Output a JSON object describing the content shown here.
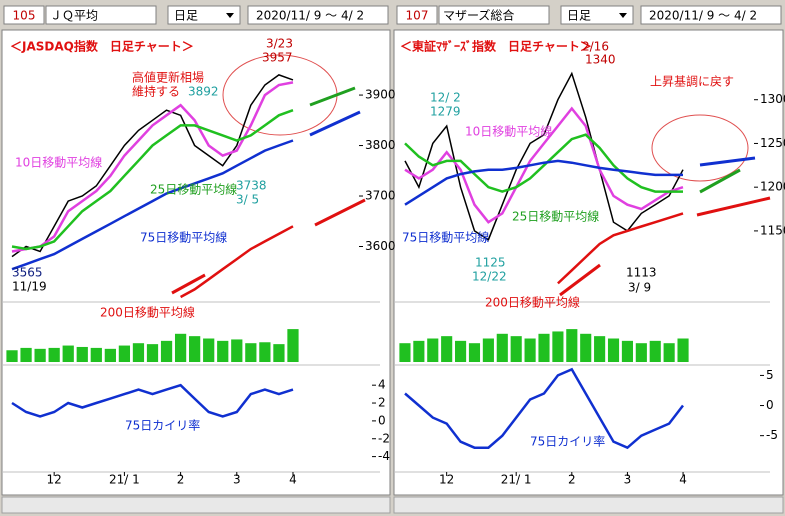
{
  "headers": [
    {
      "code": "105",
      "name": "ＪＱ平均",
      "period": "日足",
      "range": "2020/11/ 9 ～ 4/ 2"
    },
    {
      "code": "107",
      "name": "マザーズ総合",
      "period": "日足",
      "range": "2020/11/ 9 ～ 4/ 2"
    }
  ],
  "chart_data": [
    {
      "type": "line",
      "categories": [
        null,
        null,
        null,
        "12",
        null,
        null,
        null,
        null,
        "21/ 1",
        null,
        null,
        null,
        "2",
        null,
        null,
        null,
        "3",
        null,
        null,
        null,
        "4"
      ],
      "ylim": [
        3494,
        4019
      ],
      "yticks": [
        3600,
        3700,
        3800,
        3900
      ],
      "series": [
        {
          "color": "#000000",
          "values": [
            3580,
            3600,
            3590,
            3640,
            3690,
            3700,
            3720,
            3760,
            3800,
            3830,
            3850,
            3870,
            3860,
            3800,
            3780,
            3760,
            3800,
            3880,
            3920,
            3940,
            3930
          ]
        },
        {
          "color": "#e040e0",
          "values": [
            3590,
            3595,
            3600,
            3620,
            3670,
            3690,
            3710,
            3740,
            3780,
            3810,
            3840,
            3860,
            3880,
            3850,
            3800,
            3780,
            3790,
            3840,
            3900,
            3920,
            3925
          ]
        },
        {
          "color": "#20c020",
          "values": [
            3600,
            3595,
            3600,
            3610,
            3640,
            3670,
            3690,
            3710,
            3740,
            3770,
            3800,
            3820,
            3840,
            3840,
            3830,
            3820,
            3810,
            3820,
            3840,
            3860,
            3870
          ]
        },
        {
          "color": "#1030d0",
          "values": [
            3555,
            3565,
            3575,
            3585,
            3600,
            3615,
            3630,
            3645,
            3660,
            3675,
            3690,
            3705,
            3715,
            3725,
            3735,
            3745,
            3760,
            3775,
            3790,
            3800,
            3810
          ]
        },
        {
          "color": "#e01010",
          "values": [
            null,
            null,
            null,
            null,
            null,
            null,
            null,
            null,
            null,
            null,
            null,
            null,
            3500,
            3515,
            3535,
            3555,
            3575,
            3595,
            3610,
            3625,
            3640
          ]
        }
      ],
      "volume": {
        "color": "#20c020",
        "ylim": [
          0,
          100
        ],
        "values": [
          25,
          30,
          28,
          30,
          35,
          32,
          30,
          28,
          35,
          40,
          38,
          45,
          60,
          55,
          50,
          45,
          48,
          40,
          42,
          38,
          70
        ]
      },
      "kairi": {
        "color": "#1030d0",
        "ylim": [
          -5.5,
          5.7
        ],
        "yticks": [
          4,
          2,
          0,
          -2,
          -4
        ],
        "values": [
          2,
          1,
          0.5,
          1,
          2,
          1.5,
          2,
          2.5,
          3,
          3.5,
          3,
          3.5,
          4,
          2.5,
          1,
          0.5,
          1,
          3,
          3.5,
          3,
          3.5
        ]
      },
      "annotations": [
        {
          "text": "＜JASDAQ指数　日足チャート＞",
          "color": "#e01010"
        },
        {
          "text": "3/23",
          "color": "#c00000"
        },
        {
          "text": "3957",
          "color": "#c00000"
        },
        {
          "text": "高値更新相場",
          "color": "#e01010"
        },
        {
          "text": "維持する",
          "color": "#e01010"
        },
        {
          "text": "3892",
          "color": "#20a0a0"
        },
        {
          "text": "10日移動平均線",
          "color": "#e040e0"
        },
        {
          "text": "25日移動平均線",
          "color": "#20a020"
        },
        {
          "text": "3738",
          "color": "#20a0a0"
        },
        {
          "text": "3/ 5",
          "color": "#20a0a0"
        },
        {
          "text": "75日移動平均線",
          "color": "#1030d0"
        },
        {
          "text": "3565",
          "color": "#102080"
        },
        {
          "text": "11/19",
          "color": "#000000"
        },
        {
          "text": "200日移動平均線",
          "color": "#e01010"
        },
        {
          "text": "75日カイリ率",
          "color": "#1030d0"
        }
      ]
    },
    {
      "type": "line",
      "categories": [
        null,
        null,
        null,
        "12",
        null,
        null,
        null,
        null,
        "21/ 1",
        null,
        null,
        null,
        "2",
        null,
        null,
        null,
        "3",
        null,
        null,
        null,
        "4"
      ],
      "ylim": [
        1071,
        1374
      ],
      "yticks": [
        1150,
        1200,
        1250,
        1300
      ],
      "series": [
        {
          "color": "#000000",
          "values": [
            1230,
            1200,
            1250,
            1270,
            1200,
            1150,
            1140,
            1180,
            1220,
            1250,
            1260,
            1300,
            1330,
            1280,
            1220,
            1160,
            1150,
            1170,
            1180,
            1190,
            1220
          ]
        },
        {
          "color": "#e040e0",
          "values": [
            1220,
            1210,
            1220,
            1240,
            1220,
            1180,
            1160,
            1170,
            1200,
            1230,
            1250,
            1270,
            1290,
            1270,
            1220,
            1190,
            1180,
            1175,
            1185,
            1195,
            1200
          ]
        },
        {
          "color": "#20c020",
          "values": [
            1250,
            1235,
            1225,
            1230,
            1230,
            1215,
            1200,
            1195,
            1200,
            1210,
            1225,
            1240,
            1255,
            1260,
            1245,
            1225,
            1210,
            1200,
            1195,
            1195,
            1195
          ]
        },
        {
          "color": "#1030d0",
          "values": [
            1180,
            1190,
            1200,
            1210,
            1215,
            1218,
            1220,
            1220,
            1222,
            1225,
            1228,
            1230,
            1228,
            1225,
            1222,
            1220,
            1218,
            1216,
            1214,
            1214,
            1214
          ]
        },
        {
          "color": "#e01010",
          "values": [
            null,
            null,
            null,
            null,
            null,
            null,
            null,
            null,
            null,
            null,
            null,
            1090,
            1105,
            1120,
            1135,
            1145,
            1150,
            1155,
            1160,
            1165,
            1170
          ]
        }
      ],
      "volume": {
        "color": "#20c020",
        "ylim": [
          0,
          100
        ],
        "values": [
          40,
          45,
          50,
          55,
          45,
          40,
          50,
          60,
          55,
          50,
          60,
          65,
          70,
          60,
          55,
          50,
          45,
          40,
          45,
          40,
          50
        ]
      },
      "kairi": {
        "color": "#1030d0",
        "ylim": [
          -10.7,
          5.9
        ],
        "yticks": [
          5,
          0,
          -5
        ],
        "values": [
          2,
          0,
          -2,
          -3,
          -6,
          -7,
          -7,
          -5,
          -2,
          1,
          2,
          5,
          6,
          2,
          -2,
          -6,
          -7,
          -5,
          -4,
          -3,
          0
        ]
      },
      "annotations": [
        {
          "text": "＜東証ﾏｻﾞｰｽﾞ指数　日足チャート＞",
          "color": "#e01010"
        },
        {
          "text": "2/16",
          "color": "#c00000"
        },
        {
          "text": "1340",
          "color": "#c00000"
        },
        {
          "text": "上昇基調に戻す",
          "color": "#e01010"
        },
        {
          "text": "12/ 2",
          "color": "#20a0a0"
        },
        {
          "text": "1279",
          "color": "#20a0a0"
        },
        {
          "text": "10日移動平均線",
          "color": "#e040e0"
        },
        {
          "text": "25日移動平均線",
          "color": "#20a020"
        },
        {
          "text": "75日移動平均線",
          "color": "#1030d0"
        },
        {
          "text": "1125",
          "color": "#20a0a0"
        },
        {
          "text": "12/22",
          "color": "#20a0a0"
        },
        {
          "text": "1113",
          "color": "#000000"
        },
        {
          "text": "3/ 9",
          "color": "#000000"
        },
        {
          "text": "200日移動平均線",
          "color": "#e01010"
        },
        {
          "text": "75日カイリ率",
          "color": "#1030d0"
        }
      ]
    }
  ]
}
